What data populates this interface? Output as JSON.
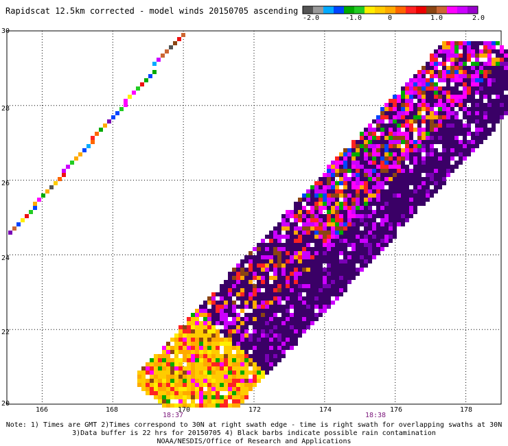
{
  "title": "Rapidscat 12.5km corrected - model winds 20150705 ascending",
  "colorbar": {
    "colors": [
      "#555555",
      "#9a9a9a",
      "#00aaff",
      "#0044ff",
      "#00aa00",
      "#22cc22",
      "#ffee00",
      "#ffcc00",
      "#ffaa00",
      "#ff6600",
      "#ff2222",
      "#ee0000",
      "#8b4513",
      "#cc6633",
      "#ff00ff",
      "#cc00ff",
      "#9900cc"
    ],
    "labels": [
      "-2.0",
      "-1.0",
      "0",
      "1.0",
      "2.0"
    ]
  },
  "axes": {
    "x_ticks": [
      "166",
      "168",
      "170",
      "172",
      "174",
      "176",
      "178"
    ],
    "y_ticks": [
      "30",
      "28",
      "26",
      "24",
      "22",
      "20"
    ]
  },
  "times": [
    "18:37",
    "18:38"
  ],
  "notes": [
    "Note: 1) Times are GMT 2)Times correspond to 30N at right swath edge - time is right swath for overlapping swaths at 30N",
    "3)Data buffer is 22 hrs for 20150705 4) Black barbs indicate possible rain contamination",
    "NOAA/NESDIS/Office of Research and Applications"
  ],
  "map_data": {
    "lon_range": [
      165.0,
      179.0
    ],
    "lat_range": [
      20.0,
      30.0
    ],
    "palette": [
      "#3a0066",
      "#7a00b5",
      "#cc00ff",
      "#ff00ff",
      "#ff2222",
      "#ee1111",
      "#ff6600",
      "#ffaa00",
      "#ffcc00",
      "#ffee00",
      "#8b4513",
      "#cc6633",
      "#00aa00",
      "#22cc22",
      "#0044ff",
      "#00aaff",
      "#555555"
    ]
  }
}
